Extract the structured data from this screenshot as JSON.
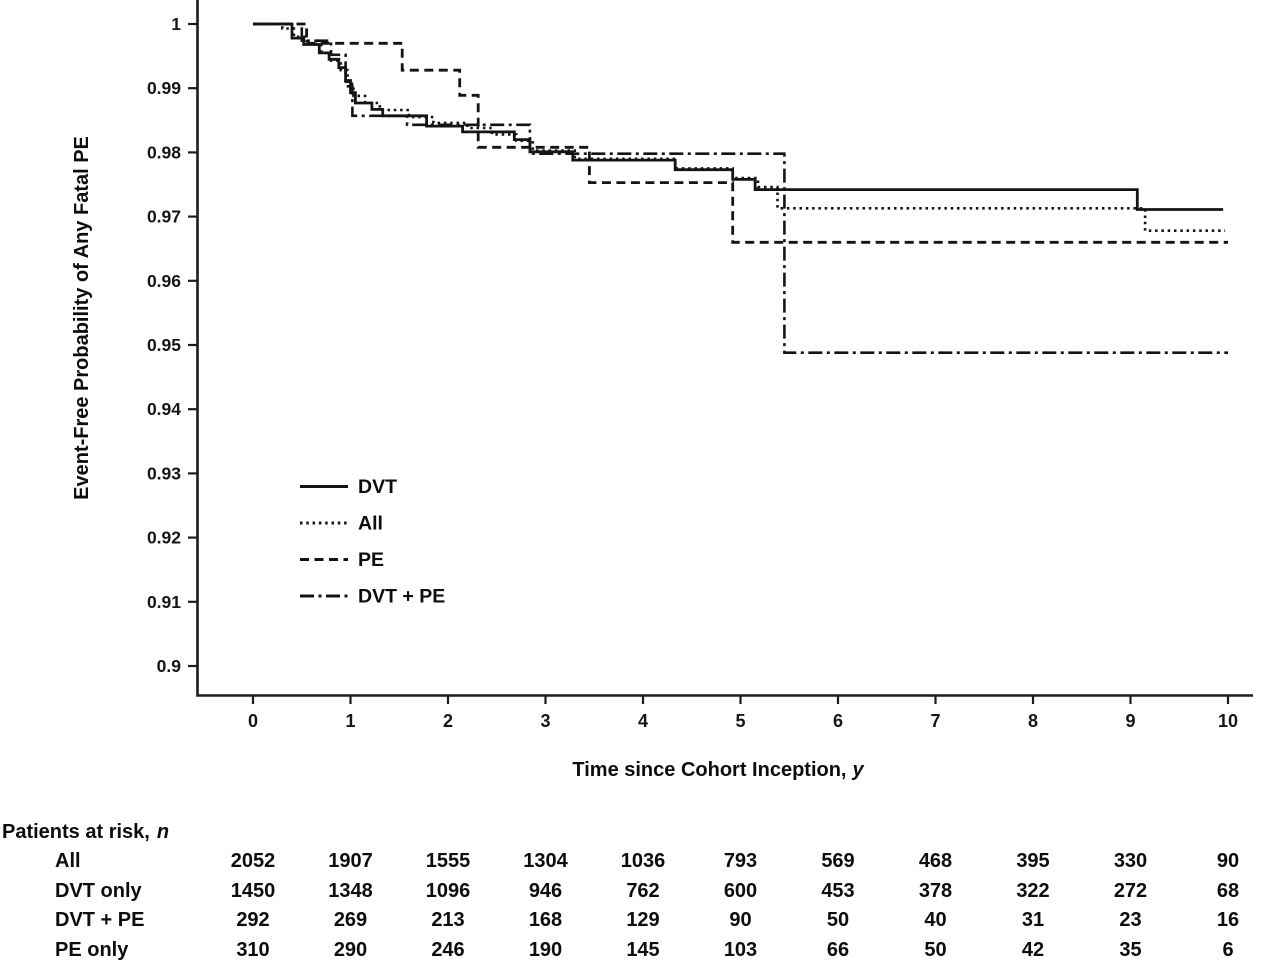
{
  "figure": {
    "background": "#ffffff",
    "ink_color": "#141414"
  },
  "chart_data": {
    "type": "line",
    "subtype": "kaplan_meier_step",
    "title": "",
    "xlabel": "Time since Cohort Inception, y",
    "xlabel_main": "Time since Cohort Inception,",
    "xlabel_italic": "y",
    "ylabel": "Event-Free Probability of Any Fatal PE",
    "xlim": [
      0,
      10
    ],
    "ylim": [
      0.9,
      1.0
    ],
    "grid": false,
    "legend_position": "inside-lower-left",
    "x_ticks": [
      0,
      1,
      2,
      3,
      4,
      5,
      6,
      7,
      8,
      9,
      10
    ],
    "y_ticks": [
      {
        "label": "1",
        "value": 1.0
      },
      {
        "label": "0.99",
        "value": 0.99
      },
      {
        "label": "0.98",
        "value": 0.98
      },
      {
        "label": "0.97",
        "value": 0.97
      },
      {
        "label": "0.96",
        "value": 0.96
      },
      {
        "label": "0.95",
        "value": 0.95
      },
      {
        "label": "0.94",
        "value": 0.94
      },
      {
        "label": "0.93",
        "value": 0.93
      },
      {
        "label": "0.92",
        "value": 0.92
      },
      {
        "label": "0.91",
        "value": 0.91
      },
      {
        "label": "0.9",
        "value": 0.9
      }
    ],
    "legend": [
      {
        "label": "DVT",
        "line_style": "solid"
      },
      {
        "label": "All",
        "line_style": "dotted"
      },
      {
        "label": "PE",
        "line_style": "dashed"
      },
      {
        "label": "DVT + PE",
        "line_style": "dashdot"
      }
    ],
    "series": [
      {
        "name": "DVT",
        "line_style": "solid",
        "points": [
          [
            0,
            1
          ],
          [
            0.4,
            1
          ],
          [
            0.4,
            0.9978
          ],
          [
            0.52,
            0.9978
          ],
          [
            0.52,
            0.9968
          ],
          [
            0.68,
            0.9968
          ],
          [
            0.68,
            0.9955
          ],
          [
            0.78,
            0.9955
          ],
          [
            0.78,
            0.9945
          ],
          [
            0.88,
            0.9945
          ],
          [
            0.88,
            0.9932
          ],
          [
            0.95,
            0.9932
          ],
          [
            0.95,
            0.9912
          ],
          [
            1.0,
            0.9912
          ],
          [
            1.0,
            0.9893
          ],
          [
            1.05,
            0.9893
          ],
          [
            1.05,
            0.9877
          ],
          [
            1.22,
            0.9877
          ],
          [
            1.22,
            0.9867
          ],
          [
            1.33,
            0.9867
          ],
          [
            1.33,
            0.9857
          ],
          [
            1.78,
            0.9857
          ],
          [
            1.78,
            0.9841
          ],
          [
            2.15,
            0.9841
          ],
          [
            2.15,
            0.9832
          ],
          [
            2.68,
            0.9832
          ],
          [
            2.68,
            0.982
          ],
          [
            2.84,
            0.982
          ],
          [
            2.84,
            0.9801
          ],
          [
            3.28,
            0.9801
          ],
          [
            3.28,
            0.9788
          ],
          [
            4.33,
            0.9788
          ],
          [
            4.33,
            0.9773
          ],
          [
            4.92,
            0.9773
          ],
          [
            4.92,
            0.9758
          ],
          [
            5.15,
            0.9758
          ],
          [
            5.15,
            0.9742
          ],
          [
            9.07,
            0.9742
          ],
          [
            9.07,
            0.9711
          ],
          [
            9.95,
            0.9711
          ]
        ]
      },
      {
        "name": "All",
        "line_style": "dotted",
        "points": [
          [
            0,
            1
          ],
          [
            0.3,
            1
          ],
          [
            0.3,
            0.9993
          ],
          [
            0.42,
            0.9993
          ],
          [
            0.42,
            0.998
          ],
          [
            0.55,
            0.998
          ],
          [
            0.55,
            0.9969
          ],
          [
            0.7,
            0.9969
          ],
          [
            0.7,
            0.9955
          ],
          [
            0.8,
            0.9955
          ],
          [
            0.8,
            0.9943
          ],
          [
            0.9,
            0.9943
          ],
          [
            0.9,
            0.9928
          ],
          [
            0.97,
            0.9928
          ],
          [
            0.97,
            0.9907
          ],
          [
            1.03,
            0.9907
          ],
          [
            1.03,
            0.9888
          ],
          [
            1.15,
            0.9888
          ],
          [
            1.15,
            0.9877
          ],
          [
            1.3,
            0.9877
          ],
          [
            1.3,
            0.9866
          ],
          [
            1.6,
            0.9866
          ],
          [
            1.6,
            0.9855
          ],
          [
            1.85,
            0.9855
          ],
          [
            1.85,
            0.9846
          ],
          [
            2.2,
            0.9846
          ],
          [
            2.2,
            0.9838
          ],
          [
            2.45,
            0.9838
          ],
          [
            2.45,
            0.9828
          ],
          [
            2.7,
            0.9828
          ],
          [
            2.7,
            0.9818
          ],
          [
            2.87,
            0.9818
          ],
          [
            2.87,
            0.9803
          ],
          [
            3.3,
            0.9803
          ],
          [
            3.3,
            0.979
          ],
          [
            4.33,
            0.979
          ],
          [
            4.33,
            0.9775
          ],
          [
            4.92,
            0.9775
          ],
          [
            4.92,
            0.976
          ],
          [
            5.18,
            0.976
          ],
          [
            5.18,
            0.9746
          ],
          [
            5.38,
            0.9746
          ],
          [
            5.38,
            0.9713
          ],
          [
            9.15,
            0.9713
          ],
          [
            9.15,
            0.9678
          ],
          [
            9.97,
            0.9678
          ]
        ]
      },
      {
        "name": "PE",
        "line_style": "dashed",
        "points": [
          [
            0,
            1
          ],
          [
            0.55,
            1
          ],
          [
            0.55,
            0.997
          ],
          [
            1.53,
            0.997
          ],
          [
            1.53,
            0.9928
          ],
          [
            2.12,
            0.9928
          ],
          [
            2.12,
            0.9889
          ],
          [
            2.31,
            0.9889
          ],
          [
            2.31,
            0.9808
          ],
          [
            3.45,
            0.9808
          ],
          [
            3.45,
            0.9753
          ],
          [
            4.92,
            0.9753
          ],
          [
            4.92,
            0.966
          ],
          [
            10.0,
            0.966
          ]
        ]
      },
      {
        "name": "DVT + PE",
        "line_style": "dashdot",
        "points": [
          [
            0,
            1
          ],
          [
            0.5,
            1
          ],
          [
            0.5,
            0.9974
          ],
          [
            0.8,
            0.9974
          ],
          [
            0.8,
            0.9952
          ],
          [
            0.95,
            0.9952
          ],
          [
            0.95,
            0.9903
          ],
          [
            1.02,
            0.9903
          ],
          [
            1.02,
            0.9857
          ],
          [
            1.58,
            0.9857
          ],
          [
            1.58,
            0.9843
          ],
          [
            2.84,
            0.9843
          ],
          [
            2.84,
            0.9798
          ],
          [
            5.45,
            0.9798
          ],
          [
            5.45,
            0.9488
          ],
          [
            10.0,
            0.9488
          ]
        ]
      }
    ]
  },
  "risk_table": {
    "title": "Patients at risk,",
    "title_italic": "n",
    "time_points": [
      0,
      1,
      2,
      3,
      4,
      5,
      6,
      7,
      8,
      9,
      10
    ],
    "rows": [
      {
        "label": "All",
        "values": [
          2052,
          1907,
          1555,
          1304,
          1036,
          793,
          569,
          468,
          395,
          330,
          90
        ]
      },
      {
        "label": "DVT only",
        "values": [
          1450,
          1348,
          1096,
          946,
          762,
          600,
          453,
          378,
          322,
          272,
          68
        ]
      },
      {
        "label": "DVT + PE",
        "values": [
          292,
          269,
          213,
          168,
          129,
          90,
          50,
          40,
          31,
          23,
          16
        ]
      },
      {
        "label": "PE only",
        "values": [
          310,
          290,
          246,
          190,
          145,
          103,
          66,
          50,
          42,
          35,
          6
        ]
      }
    ]
  }
}
